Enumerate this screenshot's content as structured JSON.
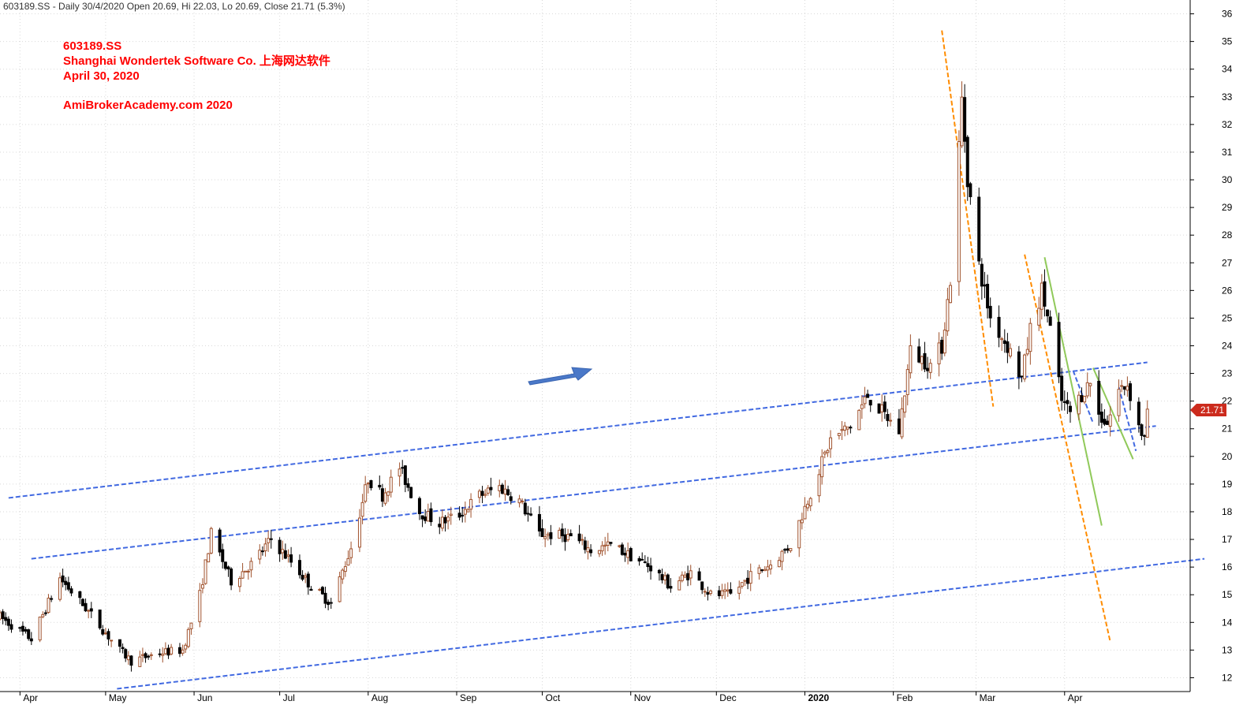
{
  "header": {
    "text": "603189.SS - Daily 30/4/2020 Open 20.69, Hi 22.03, Lo 20.69, Close 21.71 (5.3%)"
  },
  "annotations": {
    "title_lines": [
      "603189.SS",
      "Shanghai Wondertek Software Co. 上海网达软件",
      "April 30, 2020",
      "",
      "AmiBrokerAcademy.com  2020"
    ]
  },
  "price_badge": "21.71",
  "colors": {
    "up_candle": "#a0522d",
    "down_candle": "#000000",
    "trend_channel": "#4169e1",
    "fast_decline": "#ff8c00",
    "short_decline": "#90c95a",
    "arrow": "#4a78c8",
    "title": "#ff0000",
    "badge": "#cc2b1d",
    "grid": "#d9d9d9"
  },
  "chart_data": {
    "type": "candlestick",
    "symbol": "603189.SS",
    "period": "Daily",
    "ylim": [
      11.5,
      36.5
    ],
    "x_range": [
      "2019-03-25",
      "2020-05-15"
    ],
    "y_ticks": [
      12,
      13,
      14,
      15,
      16,
      17,
      18,
      19,
      20,
      21,
      22,
      23,
      24,
      25,
      26,
      27,
      28,
      29,
      30,
      31,
      32,
      33,
      34,
      35,
      36
    ],
    "x_ticks": [
      {
        "label": "Apr",
        "date": "2019-04-01"
      },
      {
        "label": "May",
        "date": "2019-05-01"
      },
      {
        "label": "Jun",
        "date": "2019-06-01"
      },
      {
        "label": "Jul",
        "date": "2019-07-01"
      },
      {
        "label": "Aug",
        "date": "2019-08-01"
      },
      {
        "label": "Sep",
        "date": "2019-09-01"
      },
      {
        "label": "Oct",
        "date": "2019-10-01"
      },
      {
        "label": "Nov",
        "date": "2019-11-01"
      },
      {
        "label": "Dec",
        "date": "2019-12-01"
      },
      {
        "label": "2020",
        "date": "2020-01-01",
        "bold": true
      },
      {
        "label": "Feb",
        "date": "2020-02-01"
      },
      {
        "label": "Mar",
        "date": "2020-03-01"
      },
      {
        "label": "Apr",
        "date": "2020-04-01"
      }
    ],
    "close_path": [
      [
        "2019-03-25",
        14.2
      ],
      [
        "2019-04-05",
        13.4
      ],
      [
        "2019-04-15",
        15.6
      ],
      [
        "2019-04-25",
        14.4
      ],
      [
        "2019-05-05",
        13.1
      ],
      [
        "2019-05-10",
        12.6
      ],
      [
        "2019-05-20",
        12.9
      ],
      [
        "2019-05-28",
        13.0
      ],
      [
        "2019-06-03",
        15.0
      ],
      [
        "2019-06-07",
        17.2
      ],
      [
        "2019-06-14",
        15.5
      ],
      [
        "2019-06-21",
        16.1
      ],
      [
        "2019-06-28",
        17.0
      ],
      [
        "2019-07-05",
        16.2
      ],
      [
        "2019-07-12",
        15.3
      ],
      [
        "2019-07-19",
        14.7
      ],
      [
        "2019-07-26",
        16.7
      ],
      [
        "2019-08-01",
        19.2
      ],
      [
        "2019-08-06",
        18.6
      ],
      [
        "2019-08-12",
        19.6
      ],
      [
        "2019-08-19",
        18.0
      ],
      [
        "2019-08-26",
        17.6
      ],
      [
        "2019-09-02",
        17.9
      ],
      [
        "2019-09-09",
        18.6
      ],
      [
        "2019-09-16",
        18.9
      ],
      [
        "2019-09-23",
        18.4
      ],
      [
        "2019-09-30",
        17.2
      ],
      [
        "2019-10-11",
        17.1
      ],
      [
        "2019-10-18",
        16.6
      ],
      [
        "2019-10-25",
        16.8
      ],
      [
        "2019-11-01",
        16.4
      ],
      [
        "2019-11-08",
        16.0
      ],
      [
        "2019-11-15",
        15.3
      ],
      [
        "2019-11-22",
        15.8
      ],
      [
        "2019-11-29",
        15.0
      ],
      [
        "2019-12-06",
        15.0
      ],
      [
        "2019-12-13",
        15.7
      ],
      [
        "2019-12-20",
        16.1
      ],
      [
        "2019-12-27",
        16.8
      ],
      [
        "2020-01-03",
        18.7
      ],
      [
        "2020-01-10",
        20.6
      ],
      [
        "2020-01-17",
        21.1
      ],
      [
        "2020-01-23",
        22.2
      ],
      [
        "2020-02-03",
        20.9
      ],
      [
        "2020-02-07",
        23.8
      ],
      [
        "2020-02-14",
        23.3
      ],
      [
        "2020-02-18",
        24.0
      ],
      [
        "2020-02-21",
        26.4
      ],
      [
        "2020-02-24",
        31.2
      ],
      [
        "2020-02-25",
        32.9
      ],
      [
        "2020-02-27",
        30.1
      ],
      [
        "2020-03-02",
        26.9
      ],
      [
        "2020-03-06",
        25.0
      ],
      [
        "2020-03-12",
        24.0
      ],
      [
        "2020-03-17",
        22.8
      ],
      [
        "2020-03-20",
        24.6
      ],
      [
        "2020-03-24",
        26.0
      ],
      [
        "2020-03-27",
        24.6
      ],
      [
        "2020-03-31",
        22.0
      ],
      [
        "2020-04-03",
        21.6
      ],
      [
        "2020-04-08",
        22.4
      ],
      [
        "2020-04-10",
        22.7
      ],
      [
        "2020-04-13",
        21.5
      ],
      [
        "2020-04-16",
        21.2
      ],
      [
        "2020-04-20",
        22.4
      ],
      [
        "2020-04-23",
        22.6
      ],
      [
        "2020-04-27",
        21.1
      ],
      [
        "2020-04-29",
        20.6
      ],
      [
        "2020-04-30",
        21.71
      ]
    ],
    "last_bar": {
      "date": "2020-04-30",
      "open": 20.69,
      "high": 22.03,
      "low": 20.69,
      "close": 21.71
    },
    "trend_lines": [
      {
        "name": "upper channel",
        "color": "trend_channel",
        "style": "dashed",
        "points": [
          [
            "2019-03-28",
            18.5
          ],
          [
            "2020-04-30",
            23.4
          ]
        ]
      },
      {
        "name": "middle channel",
        "color": "trend_channel",
        "style": "dashed",
        "points": [
          [
            "2019-04-05",
            16.3
          ],
          [
            "2020-05-03",
            21.1
          ]
        ]
      },
      {
        "name": "lower channel",
        "color": "trend_channel",
        "style": "dashed",
        "points": [
          [
            "2019-05-05",
            11.6
          ],
          [
            "2020-05-20",
            16.3
          ]
        ]
      },
      {
        "name": "decline 1",
        "color": "fast_decline",
        "style": "dashed",
        "points": [
          [
            "2020-02-18",
            35.4
          ],
          [
            "2020-03-07",
            21.8
          ]
        ]
      },
      {
        "name": "decline 2",
        "color": "fast_decline",
        "style": "dashed",
        "points": [
          [
            "2020-03-18",
            27.3
          ],
          [
            "2020-04-17",
            13.3
          ]
        ]
      },
      {
        "name": "decline 3",
        "color": "short_decline",
        "style": "solid",
        "points": [
          [
            "2020-03-25",
            27.2
          ],
          [
            "2020-04-14",
            17.5
          ]
        ]
      },
      {
        "name": "decline 4",
        "color": "trend_channel",
        "style": "dashed",
        "points": [
          [
            "2020-04-04",
            23.1
          ],
          [
            "2020-04-11",
            21.2
          ]
        ]
      },
      {
        "name": "decline 5",
        "color": "trend_channel",
        "style": "dashed",
        "points": [
          [
            "2020-04-20",
            22.5
          ],
          [
            "2020-04-26",
            20.2
          ]
        ]
      },
      {
        "name": "decline 6",
        "color": "short_decline",
        "style": "solid",
        "points": [
          [
            "2020-04-11",
            23.2
          ],
          [
            "2020-04-25",
            19.9
          ]
        ]
      }
    ]
  }
}
